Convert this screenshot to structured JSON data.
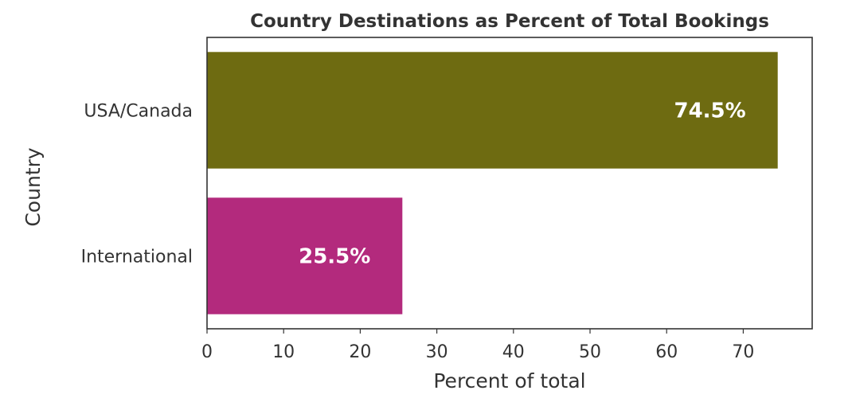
{
  "chart_data": {
    "type": "bar",
    "orientation": "horizontal",
    "title": "Country Destinations as Percent of Total Bookings",
    "xlabel": "Percent of total",
    "ylabel": "Country",
    "categories": [
      "USA/Canada",
      "International"
    ],
    "values": [
      74.5,
      25.5
    ],
    "data_labels": [
      "74.5%",
      "25.5%"
    ],
    "colors": [
      "#6e6b11",
      "#b32a7d"
    ],
    "xlim": [
      0,
      79
    ],
    "x_ticks": [
      0,
      10,
      20,
      30,
      40,
      50,
      60,
      70
    ],
    "x_tick_labels": [
      "0",
      "10",
      "20",
      "30",
      "40",
      "50",
      "60",
      "70"
    ],
    "grid": false,
    "legend": "none"
  }
}
